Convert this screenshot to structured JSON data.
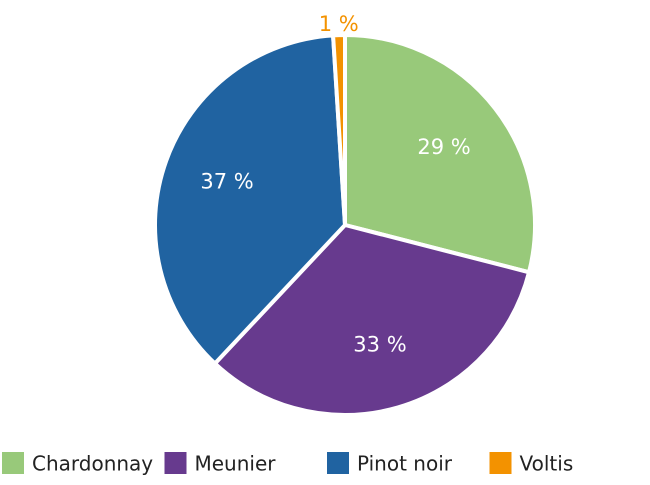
{
  "chart_data": {
    "type": "pie",
    "categories": [
      "Chardonnay",
      "Meunier",
      "Pinot noir",
      "Voltis"
    ],
    "values": [
      29,
      33,
      37,
      1
    ],
    "value_labels": [
      "29 %",
      "33 %",
      "37 %",
      "1 %"
    ],
    "colors": [
      "#98c97a",
      "#673a8e",
      "#2063a1",
      "#f39200"
    ],
    "legend": "bottom"
  }
}
